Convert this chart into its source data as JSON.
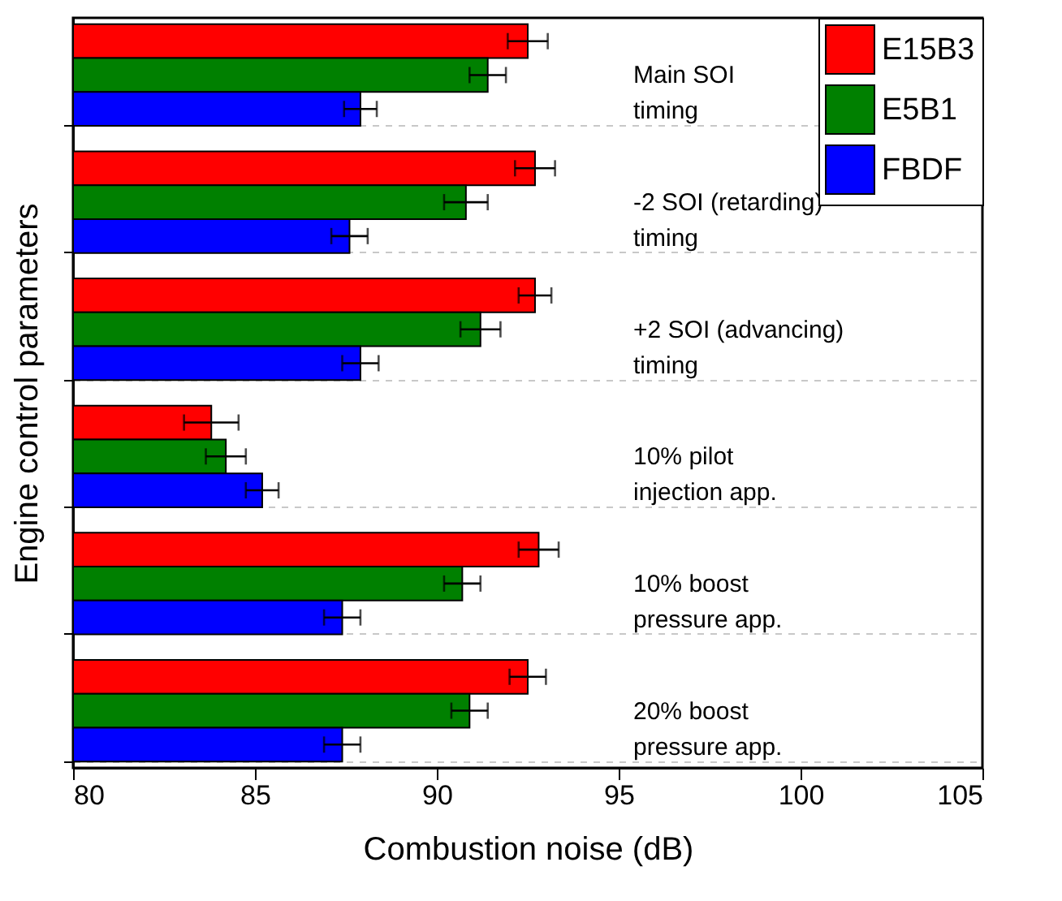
{
  "chart_data": {
    "type": "bar",
    "orientation": "horizontal",
    "xlabel": "Combustion noise (dB)",
    "ylabel": "Engine control parameters",
    "categories": [
      "Main SOI\ntiming",
      "-2 SOI (retarding)\ntiming",
      "+2 SOI (advancing)\ntiming",
      "10% pilot\ninjection app.",
      "10% boost\npressure app.",
      "20% boost\npressure app."
    ],
    "series": [
      {
        "name": "E15B3",
        "color": "#ff0000",
        "values": [
          92.5,
          92.7,
          92.7,
          83.8,
          92.8,
          92.5
        ],
        "errors": [
          0.55,
          0.55,
          0.45,
          0.75,
          0.55,
          0.5
        ]
      },
      {
        "name": "E5B1",
        "color": "#008000",
        "values": [
          91.4,
          90.8,
          91.2,
          84.2,
          90.7,
          90.9
        ],
        "errors": [
          0.5,
          0.6,
          0.55,
          0.55,
          0.5,
          0.5
        ]
      },
      {
        "name": "FBDF",
        "color": "#0000ff",
        "values": [
          87.9,
          87.6,
          87.9,
          85.2,
          87.4,
          87.4
        ],
        "errors": [
          0.45,
          0.5,
          0.5,
          0.45,
          0.5,
          0.5
        ]
      }
    ],
    "xlim": [
      80,
      105
    ],
    "xticks": [
      80,
      85,
      90,
      95,
      100,
      105
    ],
    "grid": "y",
    "legend": "top right",
    "tick_labels": "x"
  }
}
